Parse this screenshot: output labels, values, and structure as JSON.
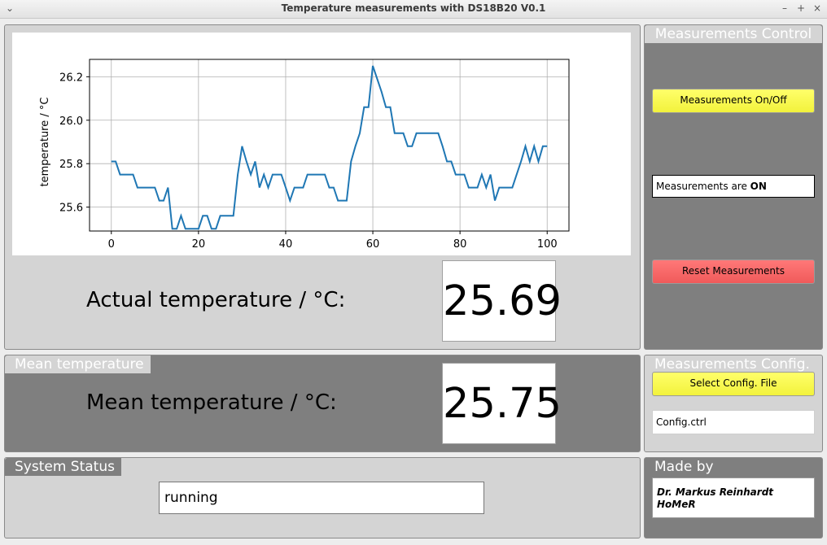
{
  "window": {
    "title": "Temperature measurements with DS18B20 V0.1",
    "menu_glyph": "⌄",
    "min_glyph": "–",
    "max_glyph": "+",
    "close_glyph": "×"
  },
  "actual": {
    "label": "Actual temperature / °C:",
    "value": "25.69"
  },
  "mean": {
    "panel_title": "Mean temperature",
    "label": "Mean temperature / °C:",
    "value": "25.75"
  },
  "status": {
    "panel_title": "System Status",
    "value": "running"
  },
  "control": {
    "panel_title": "Measurements Control",
    "toggle_label": "Measurements On/Off",
    "state_prefix": "Measurements are ",
    "state_value": "ON",
    "reset_label": "Reset Measurements"
  },
  "config": {
    "panel_title": "Measurements Config.",
    "select_label": "Select Config. File",
    "file_value": "Config.ctrl"
  },
  "madeby": {
    "panel_title": "Made by",
    "line1": "Dr. Markus Reinhardt",
    "line2": "HoMeR"
  },
  "chart_data": {
    "type": "line",
    "ylabel": "temperature / °C",
    "xlim": [
      -5,
      105
    ],
    "ylim": [
      25.49,
      26.28
    ],
    "x_ticks": [
      0,
      20,
      40,
      60,
      80,
      100
    ],
    "y_ticks": [
      25.6,
      25.8,
      26.0,
      26.2
    ],
    "y_tick_labels": [
      "25.6",
      "25.8",
      "26.0",
      "26.2"
    ],
    "grid": true,
    "line_color": "#1f77b4",
    "series": [
      {
        "x": [
          0,
          1,
          2,
          3,
          4,
          5,
          6,
          7,
          8,
          9,
          10,
          11,
          12,
          13,
          14,
          15,
          16,
          17,
          18,
          19,
          20,
          21,
          22,
          23,
          24,
          25,
          26,
          27,
          28,
          29,
          30,
          31,
          32,
          33,
          34,
          35,
          36,
          37,
          38,
          39,
          40,
          41,
          42,
          43,
          44,
          45,
          46,
          47,
          48,
          49,
          50,
          51,
          52,
          53,
          54,
          55,
          56,
          57,
          58,
          59,
          60,
          61,
          62,
          63,
          64,
          65,
          66,
          67,
          68,
          69,
          70,
          71,
          72,
          73,
          74,
          75,
          76,
          77,
          78,
          79,
          80,
          81,
          82,
          83,
          84,
          85,
          86,
          87,
          88,
          89,
          90,
          91,
          92,
          93,
          94,
          95,
          96,
          97,
          98,
          99,
          100
        ],
        "y": [
          25.81,
          25.81,
          25.75,
          25.75,
          25.75,
          25.75,
          25.69,
          25.69,
          25.69,
          25.69,
          25.69,
          25.63,
          25.63,
          25.69,
          25.5,
          25.5,
          25.56,
          25.5,
          25.5,
          25.5,
          25.5,
          25.56,
          25.56,
          25.5,
          25.5,
          25.56,
          25.56,
          25.56,
          25.56,
          25.75,
          25.88,
          25.81,
          25.75,
          25.81,
          25.69,
          25.75,
          25.69,
          25.75,
          25.75,
          25.75,
          25.69,
          25.63,
          25.69,
          25.69,
          25.69,
          25.75,
          25.75,
          25.75,
          25.75,
          25.75,
          25.69,
          25.69,
          25.63,
          25.63,
          25.63,
          25.81,
          25.88,
          25.94,
          26.06,
          26.06,
          26.25,
          26.19,
          26.13,
          26.06,
          26.06,
          25.94,
          25.94,
          25.94,
          25.88,
          25.88,
          25.94,
          25.94,
          25.94,
          25.94,
          25.94,
          25.94,
          25.88,
          25.81,
          25.81,
          25.75,
          25.75,
          25.75,
          25.69,
          25.69,
          25.69,
          25.75,
          25.69,
          25.75,
          25.63,
          25.69,
          25.69,
          25.69,
          25.69,
          25.75,
          25.81,
          25.88,
          25.81,
          25.88,
          25.81,
          25.88,
          25.88
        ]
      }
    ]
  }
}
